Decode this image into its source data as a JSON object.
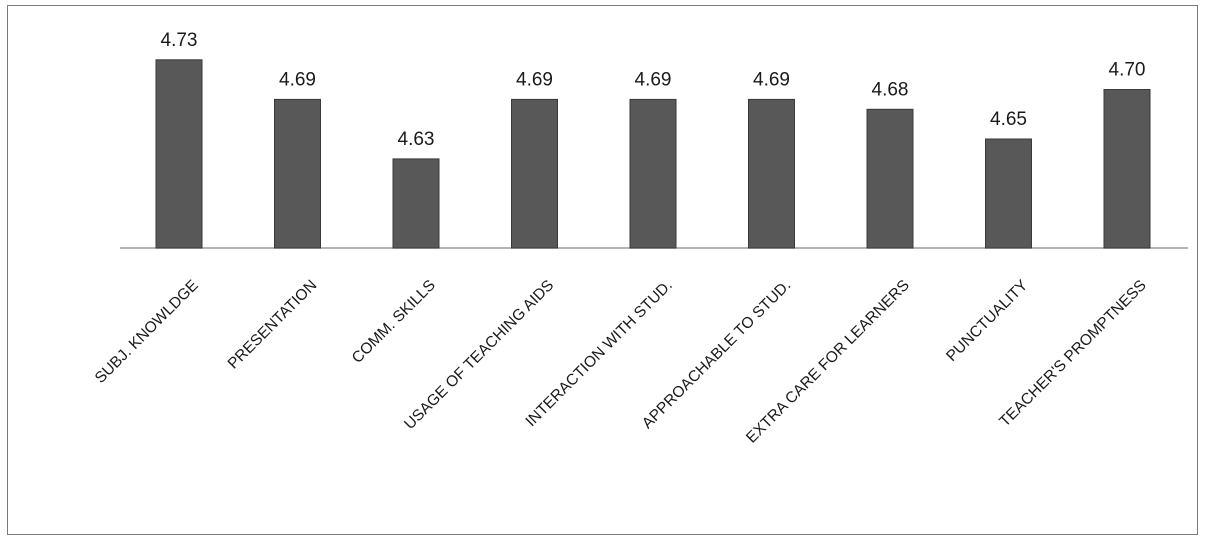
{
  "chart_data": {
    "type": "bar",
    "categories": [
      "SUBJ. KNOWLDGE",
      "PRESENTATION",
      "COMM. SKILLS",
      "USAGE OF TEACHING AIDS",
      "INTERACTION WITH STUD.",
      "APPROACHABLE TO STUD.",
      "EXTRA CARE FOR LEARNERS",
      "PUNCTUALITY",
      "TEACHER'S PROMPTNESS"
    ],
    "values": [
      4.73,
      4.69,
      4.63,
      4.69,
      4.69,
      4.69,
      4.68,
      4.65,
      4.7
    ],
    "data_labels": [
      "4.73",
      "4.69",
      "4.63",
      "4.69",
      "4.69",
      "4.69",
      "4.68",
      "4.65",
      "4.70"
    ],
    "title": "",
    "xlabel": "",
    "ylabel": "",
    "ylim": [
      4.54,
      4.75
    ],
    "grid": false,
    "legend": "none",
    "bar_color": "#585858",
    "axis_color": "#9a9a9a"
  }
}
